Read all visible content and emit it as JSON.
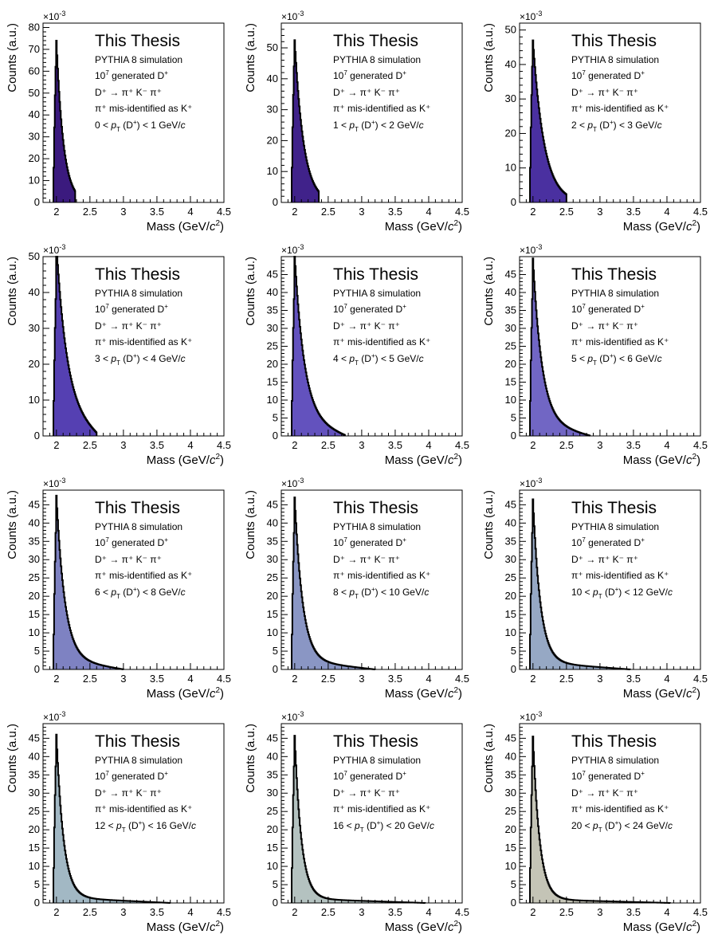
{
  "chart_data": [
    {
      "type": "area",
      "title": "This Thesis",
      "labels": [
        "PYTHIA 8 simulation",
        "generated D"
      ],
      "decay_label": "D⁺ → π⁺ K⁻ π⁺",
      "misid_label": "π⁺ mis-identified as K⁺",
      "pt_range": {
        "low": "0",
        "high": "1 GeV/"
      },
      "xlabel": "Mass (GeV/",
      "ylabel": "Counts (a.u.)",
      "y_exponent": "×10",
      "xlim": [
        1.8,
        4.5
      ],
      "ylim": [
        0,
        82
      ],
      "x_ticks": [
        2,
        2.5,
        3,
        3.5,
        4,
        4.5
      ],
      "y_ticks": [
        0,
        10,
        20,
        30,
        40,
        50,
        60,
        70,
        80
      ],
      "fill_color": "#3b1a7e",
      "shape": {
        "peak": 74,
        "tail_end": 2.28,
        "decay": 9.5,
        "shoulder": 0
      }
    },
    {
      "type": "area",
      "title": "This Thesis",
      "labels": [
        "PYTHIA 8 simulation",
        "generated D"
      ],
      "decay_label": "D⁺ → π⁺ K⁻ π⁺",
      "misid_label": "π⁺ mis-identified as K⁺",
      "pt_range": {
        "low": "1",
        "high": "2 GeV/"
      },
      "xlabel": "Mass (GeV/",
      "ylabel": "Counts (a.u.)",
      "y_exponent": "×10",
      "xlim": [
        1.8,
        4.5
      ],
      "ylim": [
        0,
        58
      ],
      "x_ticks": [
        2,
        2.5,
        3,
        3.5,
        4,
        4.5
      ],
      "y_ticks": [
        0,
        10,
        20,
        30,
        40,
        50
      ],
      "fill_color": "#40228a",
      "shape": {
        "peak": 52.5,
        "tail_end": 2.36,
        "decay": 7.5,
        "shoulder": 0
      }
    },
    {
      "type": "area",
      "title": "This Thesis",
      "labels": [
        "PYTHIA 8 simulation",
        "generated D"
      ],
      "decay_label": "D⁺ → π⁺ K⁻ π⁺",
      "misid_label": "π⁺ mis-identified as K⁺",
      "pt_range": {
        "low": "2",
        "high": "3 GeV/"
      },
      "xlabel": "Mass (GeV/",
      "ylabel": "Counts (a.u.)",
      "y_exponent": "×10",
      "xlim": [
        1.8,
        4.5
      ],
      "ylim": [
        0,
        52
      ],
      "x_ticks": [
        2,
        2.5,
        3,
        3.5,
        4,
        4.5
      ],
      "y_ticks": [
        0,
        10,
        20,
        30,
        40,
        50
      ],
      "fill_color": "#4a30a0",
      "shape": {
        "peak": 47,
        "tail_end": 2.5,
        "decay": 6.0,
        "shoulder": 0
      }
    },
    {
      "type": "area",
      "title": "This Thesis",
      "labels": [
        "PYTHIA 8 simulation",
        "generated D"
      ],
      "decay_label": "D⁺ → π⁺ K⁻ π⁺",
      "misid_label": "π⁺ mis-identified as K⁺",
      "pt_range": {
        "low": "3",
        "high": "4 GeV/"
      },
      "xlabel": "Mass (GeV/",
      "ylabel": "Counts (a.u.)",
      "y_exponent": "×10",
      "xlim": [
        1.8,
        4.5
      ],
      "ylim": [
        0,
        50
      ],
      "x_ticks": [
        2,
        2.5,
        3,
        3.5,
        4,
        4.5
      ],
      "y_ticks": [
        0,
        10,
        20,
        30,
        40,
        50
      ],
      "fill_color": "#5540b2",
      "shape": {
        "peak": 45.5,
        "tail_end": 2.6,
        "decay": 6.5,
        "shoulder": 8
      }
    },
    {
      "type": "area",
      "title": "This Thesis",
      "labels": [
        "PYTHIA 8 simulation",
        "generated D"
      ],
      "decay_label": "D⁺ → π⁺ K⁻ π⁺",
      "misid_label": "π⁺ mis-identified as K⁺",
      "pt_range": {
        "low": "4",
        "high": "5 GeV/"
      },
      "xlabel": "Mass (GeV/",
      "ylabel": "Counts (a.u.)",
      "y_exponent": "×10",
      "xlim": [
        1.8,
        4.5
      ],
      "ylim": [
        0,
        50
      ],
      "x_ticks": [
        2,
        2.5,
        3,
        3.5,
        4,
        4.5
      ],
      "y_ticks": [
        0,
        5,
        10,
        15,
        20,
        25,
        30,
        35,
        40,
        45
      ],
      "fill_color": "#6352be",
      "shape": {
        "peak": 45.5,
        "tail_end": 2.75,
        "decay": 7.0,
        "shoulder": 5
      }
    },
    {
      "type": "area",
      "title": "This Thesis",
      "labels": [
        "PYTHIA 8 simulation",
        "generated D"
      ],
      "decay_label": "D⁺ → π⁺ K⁻ π⁺",
      "misid_label": "π⁺ mis-identified as K⁺",
      "pt_range": {
        "low": "5",
        "high": "6 GeV/"
      },
      "xlabel": "Mass (GeV/",
      "ylabel": "Counts (a.u.)",
      "y_exponent": "×10",
      "xlim": [
        1.8,
        4.5
      ],
      "ylim": [
        0,
        50
      ],
      "x_ticks": [
        2,
        2.5,
        3,
        3.5,
        4,
        4.5
      ],
      "y_ticks": [
        0,
        5,
        10,
        15,
        20,
        25,
        30,
        35,
        40,
        45
      ],
      "fill_color": "#7166c4",
      "shape": {
        "peak": 45.5,
        "tail_end": 2.85,
        "decay": 7.5,
        "shoulder": 4
      }
    },
    {
      "type": "area",
      "title": "This Thesis",
      "labels": [
        "PYTHIA 8 simulation",
        "generated D"
      ],
      "decay_label": "D⁺ → π⁺ K⁻ π⁺",
      "misid_label": "π⁺ mis-identified as K⁺",
      "pt_range": {
        "low": "6",
        "high": "8 GeV/"
      },
      "xlabel": "Mass (GeV/",
      "ylabel": "Counts (a.u.)",
      "y_exponent": "×10",
      "xlim": [
        1.8,
        4.5
      ],
      "ylim": [
        0,
        49
      ],
      "x_ticks": [
        2,
        2.5,
        3,
        3.5,
        4,
        4.5
      ],
      "y_ticks": [
        0,
        5,
        10,
        15,
        20,
        25,
        30,
        35,
        40,
        45
      ],
      "fill_color": "#7e82c2",
      "shape": {
        "peak": 44.5,
        "tail_end": 3.0,
        "decay": 8.0,
        "shoulder": 3
      }
    },
    {
      "type": "area",
      "title": "This Thesis",
      "labels": [
        "PYTHIA 8 simulation",
        "generated D"
      ],
      "decay_label": "D⁺ → π⁺ K⁻ π⁺",
      "misid_label": "π⁺ mis-identified as K⁺",
      "pt_range": {
        "low": "8",
        "high": "10 GeV/"
      },
      "xlabel": "Mass (GeV/",
      "ylabel": "Counts (a.u.)",
      "y_exponent": "×10",
      "xlim": [
        1.8,
        4.5
      ],
      "ylim": [
        0,
        49
      ],
      "x_ticks": [
        2,
        2.5,
        3,
        3.5,
        4,
        4.5
      ],
      "y_ticks": [
        0,
        5,
        10,
        15,
        20,
        25,
        30,
        35,
        40,
        45
      ],
      "fill_color": "#8a96c4",
      "shape": {
        "peak": 44.5,
        "tail_end": 3.2,
        "decay": 8.5,
        "shoulder": 2.5
      }
    },
    {
      "type": "area",
      "title": "This Thesis",
      "labels": [
        "PYTHIA 8 simulation",
        "generated D"
      ],
      "decay_label": "D⁺ → π⁺ K⁻ π⁺",
      "misid_label": "π⁺ mis-identified as K⁺",
      "pt_range": {
        "low": "10",
        "high": "12 GeV/"
      },
      "xlabel": "Mass (GeV/",
      "ylabel": "Counts (a.u.)",
      "y_exponent": "×10",
      "xlim": [
        1.8,
        4.5
      ],
      "ylim": [
        0,
        49
      ],
      "x_ticks": [
        2,
        2.5,
        3,
        3.5,
        4,
        4.5
      ],
      "y_ticks": [
        0,
        5,
        10,
        15,
        20,
        25,
        30,
        35,
        40,
        45
      ],
      "fill_color": "#96a8c4",
      "shape": {
        "peak": 44.5,
        "tail_end": 3.45,
        "decay": 9.0,
        "shoulder": 2
      }
    },
    {
      "type": "area",
      "title": "This Thesis",
      "labels": [
        "PYTHIA 8 simulation",
        "generated D"
      ],
      "decay_label": "D⁺ → π⁺ K⁻ π⁺",
      "misid_label": "π⁺ mis-identified as K⁺",
      "pt_range": {
        "low": "12",
        "high": "16 GeV/"
      },
      "xlabel": "Mass (GeV/",
      "ylabel": "Counts (a.u.)",
      "y_exponent": "×10",
      "xlim": [
        1.8,
        4.5
      ],
      "ylim": [
        0,
        49
      ],
      "x_ticks": [
        2,
        2.5,
        3,
        3.5,
        4,
        4.5
      ],
      "y_ticks": [
        0,
        5,
        10,
        15,
        20,
        25,
        30,
        35,
        40,
        45
      ],
      "fill_color": "#a2b8c4",
      "shape": {
        "peak": 44.5,
        "tail_end": 3.7,
        "decay": 9.5,
        "shoulder": 1.5
      }
    },
    {
      "type": "area",
      "title": "This Thesis",
      "labels": [
        "PYTHIA 8 simulation",
        "generated D"
      ],
      "decay_label": "D⁺ → π⁺ K⁻ π⁺",
      "misid_label": "π⁺ mis-identified as K⁺",
      "pt_range": {
        "low": "16",
        "high": "20 GeV/"
      },
      "xlabel": "Mass (GeV/",
      "ylabel": "Counts (a.u.)",
      "y_exponent": "×10",
      "xlim": [
        1.8,
        4.5
      ],
      "ylim": [
        0,
        49
      ],
      "x_ticks": [
        2,
        2.5,
        3,
        3.5,
        4,
        4.5
      ],
      "y_ticks": [
        0,
        5,
        10,
        15,
        20,
        25,
        30,
        35,
        40,
        45
      ],
      "fill_color": "#b4c2c0",
      "shape": {
        "peak": 44.5,
        "tail_end": 3.95,
        "decay": 10.0,
        "shoulder": 1.2
      }
    },
    {
      "type": "area",
      "title": "This Thesis",
      "labels": [
        "PYTHIA 8 simulation",
        "generated D"
      ],
      "decay_label": "D⁺ → π⁺ K⁻ π⁺",
      "misid_label": "π⁺ mis-identified as K⁺",
      "pt_range": {
        "low": "20",
        "high": "24 GeV/"
      },
      "xlabel": "Mass (GeV/",
      "ylabel": "Counts (a.u.)",
      "y_exponent": "×10",
      "xlim": [
        1.8,
        4.5
      ],
      "ylim": [
        0,
        49
      ],
      "x_ticks": [
        2,
        2.5,
        3,
        3.5,
        4,
        4.5
      ],
      "y_ticks": [
        0,
        5,
        10,
        15,
        20,
        25,
        30,
        35,
        40,
        45
      ],
      "fill_color": "#c4c4b6",
      "shape": {
        "peak": 44.5,
        "tail_end": 4.05,
        "decay": 10.0,
        "shoulder": 1.0
      }
    }
  ]
}
